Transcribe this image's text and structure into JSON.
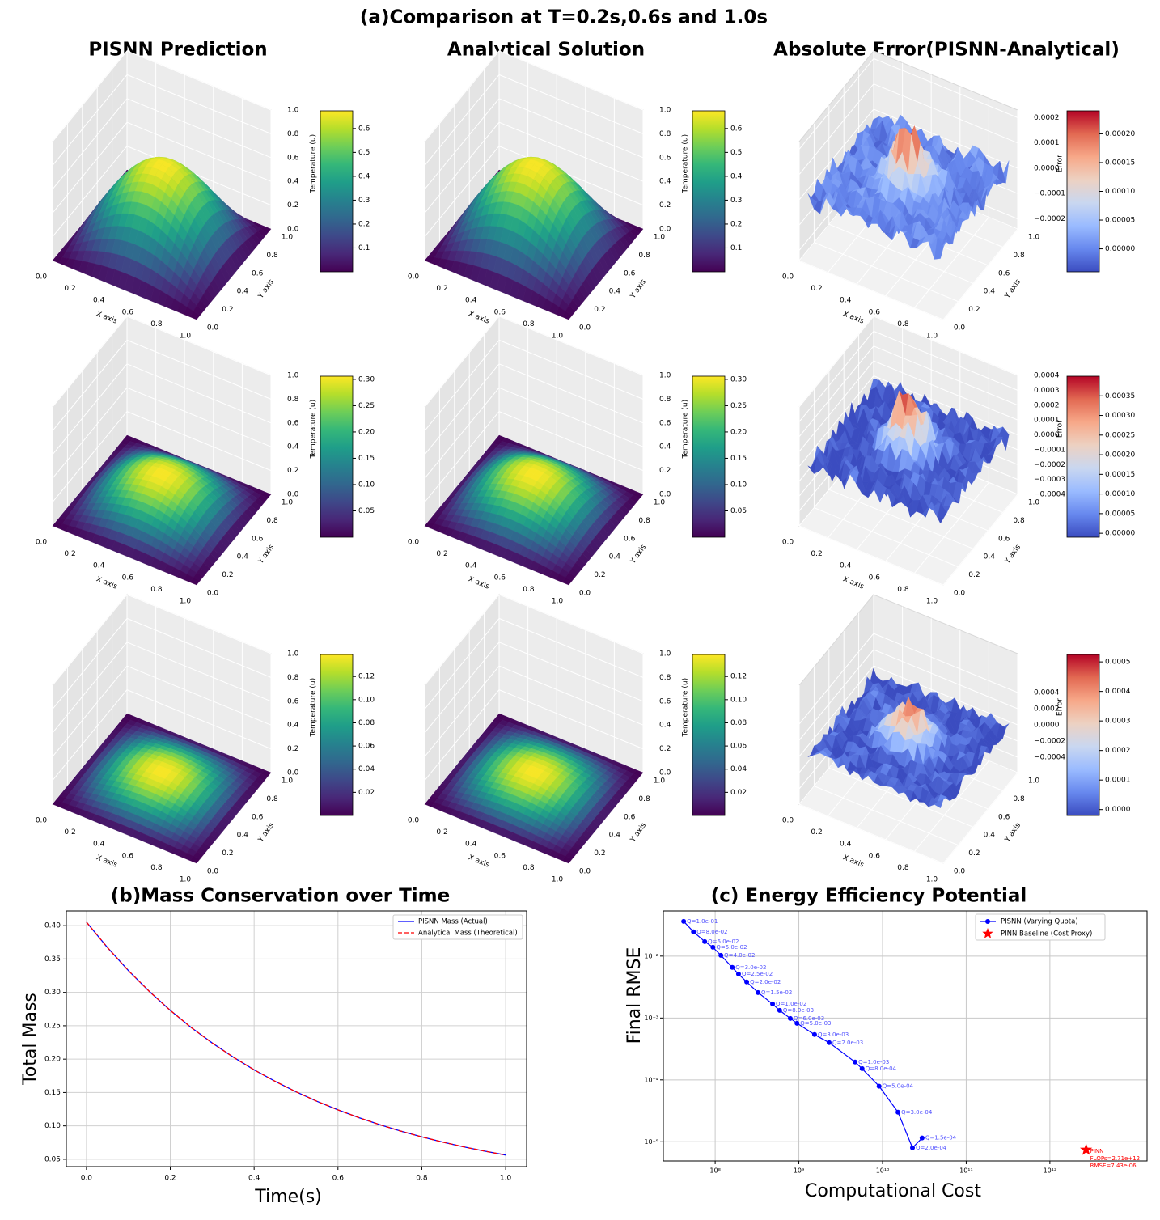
{
  "title": "(a)Comparison at T=0.2s,0.6s and 1.0s",
  "column_titles": [
    "PISNN Prediction",
    "Analytical Solution",
    "Absolute Error(PISNN-Analytical)"
  ],
  "chart_data": [
    {
      "type": "surface",
      "colormap": "viridis",
      "xlabel": "X axis",
      "ylabel": "Y axis",
      "zlabel": "Temperature (u)",
      "xlim": [
        0,
        1
      ],
      "ylim": [
        0,
        1
      ],
      "zlim": [
        0,
        1
      ],
      "xticks": [
        {
          "value": 0,
          "label": "0.0"
        },
        0.2,
        0.4,
        0.6,
        0.8,
        {
          "value": 1,
          "label": "1.0"
        }
      ],
      "yticks": [
        {
          "value": 0,
          "label": "0.0"
        },
        0.2,
        0.4,
        0.6,
        0.8,
        {
          "value": 1,
          "label": "1.0"
        }
      ],
      "zticks": [
        {
          "value": 0,
          "label": "0.0"
        },
        0.2,
        0.4,
        0.6,
        0.8,
        {
          "value": 1,
          "label": "1.0"
        }
      ],
      "clim": [
        0,
        0.674
      ],
      "cticks": [
        0.1,
        0.2,
        0.3,
        0.4,
        0.5,
        0.6
      ]
    },
    {
      "type": "surface",
      "colormap": "viridis",
      "xlabel": "X axis",
      "ylabel": "Y axis",
      "zlabel": "Temperature (u)",
      "xlim": [
        0,
        1
      ],
      "ylim": [
        0,
        1
      ],
      "zlim": [
        0,
        1
      ],
      "xticks": [
        {
          "value": 0,
          "label": "0.0"
        },
        0.2,
        0.4,
        0.6,
        0.8,
        {
          "value": 1,
          "label": "1.0"
        }
      ],
      "yticks": [
        {
          "value": 0,
          "label": "0.0"
        },
        0.2,
        0.4,
        0.6,
        0.8,
        {
          "value": 1,
          "label": "1.0"
        }
      ],
      "zticks": [
        {
          "value": 0,
          "label": "0.0"
        },
        0.2,
        0.4,
        0.6,
        0.8,
        {
          "value": 1,
          "label": "1.0"
        }
      ],
      "clim": [
        0,
        0.674
      ],
      "cticks": [
        0.1,
        0.2,
        0.3,
        0.4,
        0.5,
        0.6
      ]
    },
    {
      "type": "surface",
      "colormap": "coolwarm",
      "xlabel": "X axis",
      "ylabel": "Y axis",
      "zlabel": "Error",
      "xlim": [
        0,
        1
      ],
      "ylim": [
        0,
        1
      ],
      "zlim": [
        -0.00024,
        0.00023
      ],
      "xticks": [
        {
          "value": 0,
          "label": "0.0"
        },
        0.2,
        0.4,
        0.6,
        0.8,
        {
          "value": 1,
          "label": "1.0"
        }
      ],
      "yticks": [
        {
          "value": 0,
          "label": "0.0"
        },
        0.2,
        0.4,
        0.6,
        0.8,
        {
          "value": 1,
          "label": "1.0"
        }
      ],
      "zticks": [
        0.0002,
        0.0001,
        {
          "value": 0,
          "label": "0.0000"
        },
        {
          "value": -0.0001,
          "label": "−0.0001"
        },
        {
          "value": -0.0002,
          "label": "−0.0002"
        }
      ],
      "clim": [
        -4e-05,
        0.00024
      ],
      "cticks": [
        {
          "value": 0,
          "label": "0.00000"
        },
        5e-05,
        {
          "value": 0.0001,
          "label": "0.00010"
        },
        0.00015,
        {
          "value": 0.0002,
          "label": "0.00020"
        }
      ]
    },
    {
      "type": "surface",
      "colormap": "viridis",
      "xlabel": "X axis",
      "ylabel": "Y axis",
      "zlabel": "Temperature (u)",
      "xlim": [
        0,
        1
      ],
      "ylim": [
        0,
        1
      ],
      "zlim": [
        0,
        1
      ],
      "xticks": [
        {
          "value": 0,
          "label": "0.0"
        },
        0.2,
        0.4,
        0.6,
        0.8,
        {
          "value": 1,
          "label": "1.0"
        }
      ],
      "yticks": [
        {
          "value": 0,
          "label": "0.0"
        },
        0.2,
        0.4,
        0.6,
        0.8,
        {
          "value": 1,
          "label": "1.0"
        }
      ],
      "zticks": [
        {
          "value": 0,
          "label": "0.0"
        },
        0.2,
        0.4,
        0.6,
        0.8,
        {
          "value": 1,
          "label": "1.0"
        }
      ],
      "clim": [
        0,
        0.306
      ],
      "cticks": [
        0.05,
        {
          "value": 0.1,
          "label": "0.10"
        },
        0.15,
        {
          "value": 0.2,
          "label": "0.20"
        },
        0.25,
        {
          "value": 0.3,
          "label": "0.30"
        }
      ]
    },
    {
      "type": "surface",
      "colormap": "viridis",
      "xlabel": "X axis",
      "ylabel": "Y axis",
      "zlabel": "Temperature (u)",
      "xlim": [
        0,
        1
      ],
      "ylim": [
        0,
        1
      ],
      "zlim": [
        0,
        1
      ],
      "xticks": [
        {
          "value": 0,
          "label": "0.0"
        },
        0.2,
        0.4,
        0.6,
        0.8,
        {
          "value": 1,
          "label": "1.0"
        }
      ],
      "yticks": [
        {
          "value": 0,
          "label": "0.0"
        },
        0.2,
        0.4,
        0.6,
        0.8,
        {
          "value": 1,
          "label": "1.0"
        }
      ],
      "zticks": [
        {
          "value": 0,
          "label": "0.0"
        },
        0.2,
        0.4,
        0.6,
        0.8,
        {
          "value": 1,
          "label": "1.0"
        }
      ],
      "clim": [
        0,
        0.306
      ],
      "cticks": [
        0.05,
        {
          "value": 0.1,
          "label": "0.10"
        },
        0.15,
        {
          "value": 0.2,
          "label": "0.20"
        },
        0.25,
        {
          "value": 0.3,
          "label": "0.30"
        }
      ]
    },
    {
      "type": "surface",
      "colormap": "coolwarm",
      "xlabel": "X axis",
      "ylabel": "Y axis",
      "zlabel": "Error",
      "xlim": [
        0,
        1
      ],
      "ylim": [
        0,
        1
      ],
      "zlim": [
        -0.0004,
        0.0004
      ],
      "xticks": [
        {
          "value": 0,
          "label": "0.0"
        },
        0.2,
        0.4,
        0.6,
        0.8,
        {
          "value": 1,
          "label": "1.0"
        }
      ],
      "yticks": [
        {
          "value": 0,
          "label": "0.0"
        },
        0.2,
        0.4,
        0.6,
        0.8,
        {
          "value": 1,
          "label": "1.0"
        }
      ],
      "zticks": [
        0.0004,
        0.0003,
        0.0002,
        0.0001,
        {
          "value": 0,
          "label": "0.0000"
        },
        {
          "value": -0.0001,
          "label": "−0.0001"
        },
        {
          "value": -0.0002,
          "label": "−0.0002"
        },
        {
          "value": -0.0003,
          "label": "−0.0003"
        },
        {
          "value": -0.0004,
          "label": "−0.0004"
        }
      ],
      "clim": [
        -1e-05,
        0.0004
      ],
      "cticks": [
        {
          "value": 0,
          "label": "0.00000"
        },
        5e-05,
        {
          "value": 0.0001,
          "label": "0.00010"
        },
        0.00015,
        {
          "value": 0.0002,
          "label": "0.00020"
        },
        0.00025,
        {
          "value": 0.0003,
          "label": "0.00030"
        },
        0.00035
      ]
    },
    {
      "type": "surface",
      "colormap": "viridis",
      "xlabel": "X axis",
      "ylabel": "Y axis",
      "zlabel": "Temperature (u)",
      "xlim": [
        0,
        1
      ],
      "ylim": [
        0,
        1
      ],
      "zlim": [
        0,
        1
      ],
      "xticks": [
        {
          "value": 0,
          "label": "0.0"
        },
        0.2,
        0.4,
        0.6,
        0.8,
        {
          "value": 1,
          "label": "1.0"
        }
      ],
      "yticks": [
        {
          "value": 0,
          "label": "0.0"
        },
        0.2,
        0.4,
        0.6,
        0.8,
        {
          "value": 1,
          "label": "1.0"
        }
      ],
      "zticks": [
        {
          "value": 0,
          "label": "0.0"
        },
        0.2,
        0.4,
        0.6,
        0.8,
        {
          "value": 1,
          "label": "1.0"
        }
      ],
      "clim": [
        0,
        0.139
      ],
      "cticks": [
        0.02,
        0.04,
        0.06,
        0.08,
        {
          "value": 0.1,
          "label": "0.10"
        },
        0.12
      ]
    },
    {
      "type": "surface",
      "colormap": "viridis",
      "xlabel": "X axis",
      "ylabel": "Y axis",
      "zlabel": "Temperature (u)",
      "xlim": [
        0,
        1
      ],
      "ylim": [
        0,
        1
      ],
      "zlim": [
        0,
        1
      ],
      "xticks": [
        {
          "value": 0,
          "label": "0.0"
        },
        0.2,
        0.4,
        0.6,
        0.8,
        {
          "value": 1,
          "label": "1.0"
        }
      ],
      "yticks": [
        {
          "value": 0,
          "label": "0.0"
        },
        0.2,
        0.4,
        0.6,
        0.8,
        {
          "value": 1,
          "label": "1.0"
        }
      ],
      "zticks": [
        {
          "value": 0,
          "label": "0.0"
        },
        0.2,
        0.4,
        0.6,
        0.8,
        {
          "value": 1,
          "label": "1.0"
        }
      ],
      "clim": [
        0,
        0.139
      ],
      "cticks": [
        0.02,
        0.04,
        0.06,
        0.08,
        {
          "value": 0.1,
          "label": "0.10"
        },
        0.12
      ]
    },
    {
      "type": "surface",
      "colormap": "coolwarm",
      "xlabel": "X axis",
      "ylabel": "Y axis",
      "zlabel": "Error",
      "xlim": [
        0,
        1
      ],
      "ylim": [
        0,
        1
      ],
      "zlim": [
        -0.00059,
        0.00088
      ],
      "xticks": [
        {
          "value": 0,
          "label": "0.0"
        },
        0.2,
        0.4,
        0.6,
        0.8,
        {
          "value": 1,
          "label": "1.0"
        }
      ],
      "yticks": [
        {
          "value": 0,
          "label": "0.0"
        },
        0.2,
        0.4,
        0.6,
        0.8,
        {
          "value": 1,
          "label": "1.0"
        }
      ],
      "zticks": [
        0.0004,
        0.0002,
        {
          "value": 0,
          "label": "0.0000"
        },
        {
          "value": -0.0002,
          "label": "−0.0002"
        },
        {
          "value": -0.0004,
          "label": "−0.0004"
        }
      ],
      "clim": [
        -2e-05,
        0.000525
      ],
      "cticks": [
        {
          "value": 0,
          "label": "0.0000"
        },
        0.0001,
        0.0002,
        0.0003,
        0.0004,
        0.0005
      ]
    },
    {
      "type": "line",
      "title": "(b)Mass Conservation over Time",
      "xlabel": "Time(s)",
      "ylabel": "Total Mass",
      "legend": "upper right",
      "grid": true,
      "x": [
        0,
        0.05,
        0.1,
        0.15,
        0.2,
        0.25,
        0.3,
        0.35,
        0.4,
        0.45,
        0.5,
        0.55,
        0.6,
        0.65,
        0.7,
        0.75,
        0.8,
        0.85,
        0.9,
        0.95,
        1.0
      ],
      "series": [
        {
          "name": "PISNN Mass (Actual)",
          "color": "#0000ff",
          "dash": false,
          "values": [
            0.4053,
            0.3672,
            0.3327,
            0.3014,
            0.2731,
            0.2474,
            0.2242,
            0.2031,
            0.184,
            0.1667,
            0.151,
            0.1368,
            0.124,
            0.1123,
            0.1018,
            0.0922,
            0.0835,
            0.0757,
            0.0686,
            0.0621,
            0.0563
          ]
        },
        {
          "name": "Analytical Mass (Theoretical)",
          "color": "#ff0000",
          "dash": true,
          "values": [
            0.4053,
            0.3672,
            0.3327,
            0.3014,
            0.2731,
            0.2474,
            0.2242,
            0.2031,
            0.184,
            0.1667,
            0.151,
            0.1368,
            0.124,
            0.1123,
            0.1018,
            0.0922,
            0.0835,
            0.0757,
            0.0686,
            0.0621,
            0.0563
          ]
        }
      ],
      "xlim": [
        -0.048,
        1.05
      ],
      "ylim": [
        0.039,
        0.422
      ],
      "xticks": [
        {
          "value": 0,
          "label": "0.0"
        },
        0.2,
        0.4,
        0.6,
        0.8,
        {
          "value": 1,
          "label": "1.0"
        }
      ],
      "yticks": [
        0.05,
        {
          "value": 0.1,
          "label": "0.10"
        },
        0.15,
        {
          "value": 0.2,
          "label": "0.20"
        },
        0.25,
        {
          "value": 0.3,
          "label": "0.30"
        },
        0.35,
        {
          "value": 0.4,
          "label": "0.40"
        }
      ]
    },
    {
      "type": "loglog",
      "title": "(c) Energy Efficiency Potential",
      "xlabel": "Computational Cost",
      "ylabel": "Final RMSE",
      "legend": "upper right",
      "grid": true,
      "xlim": [
        24000000.0,
        14500000000000.0
      ],
      "ylim": [
        4.9e-06,
        0.0537
      ],
      "xticks": [
        {
          "value": 100000000.0,
          "label": "10⁸"
        },
        {
          "value": 1000000000.0,
          "label": "10⁹"
        },
        {
          "value": 10000000000.0,
          "label": "10¹⁰"
        },
        {
          "value": 100000000000.0,
          "label": "10¹¹"
        },
        {
          "value": 1000000000000.0,
          "label": "10¹²"
        }
      ],
      "yticks": [
        {
          "value": 0.01,
          "label": "10⁻²"
        },
        {
          "value": 0.001,
          "label": "10⁻³"
        },
        {
          "value": 0.0001,
          "label": "10⁻⁴"
        },
        {
          "value": 1e-05,
          "label": "10⁻⁵"
        }
      ],
      "series": [
        {
          "name": "PISNN (Varying Quota)",
          "color": "#0000ff",
          "marker": "circle",
          "x": [
            42000000.0,
            55000000.0,
            75000000.0,
            94000000.0,
            117000000.0,
            160000000.0,
            190000000.0,
            238000000.0,
            325000000.0,
            485000000.0,
            590000000.0,
            790000000.0,
            950000000.0,
            1540000000.0,
            2300000000.0,
            4700000000.0,
            5700000000.0,
            9100000000.0,
            15300000000.0,
            22800000000.0,
            29700000000.0
          ],
          "values": [
            0.0365,
            0.0247,
            0.0172,
            0.0139,
            0.0103,
            0.00657,
            0.00515,
            0.00382,
            0.00258,
            0.00169,
            0.00133,
            0.000985,
            0.000822,
            0.00054,
            0.0004,
            0.000194,
            0.000152,
            7.9e-05,
            3e-05,
            7.98e-06,
            1.15e-05
          ],
          "point_labels": [
            "Q=1.0e-01",
            "Q=8.0e-02",
            "Q=6.0e-02",
            "Q=5.0e-02",
            "Q=4.0e-02",
            "Q=3.0e-02",
            "Q=2.5e-02",
            "Q=2.0e-02",
            "Q=1.5e-02",
            "Q=1.0e-02",
            "Q=8.0e-03",
            "Q=6.0e-03",
            "Q=5.0e-03",
            "Q=3.0e-03",
            "Q=2.0e-03",
            "Q=1.0e-03",
            "Q=8.0e-04",
            "Q=5.0e-04",
            "Q=3.0e-04",
            "Q=2.0e-04",
            "Q=1.5e-04"
          ]
        },
        {
          "name": "PINN Baseline (Cost Proxy)",
          "color": "#ff0000",
          "marker": "star",
          "x": [
            2710000000000.0
          ],
          "values": [
            7.43e-06
          ],
          "annotation": [
            "PINN",
            "FLOPs=2.71e+12",
            "RMSE=7.43e-06"
          ]
        }
      ]
    }
  ]
}
